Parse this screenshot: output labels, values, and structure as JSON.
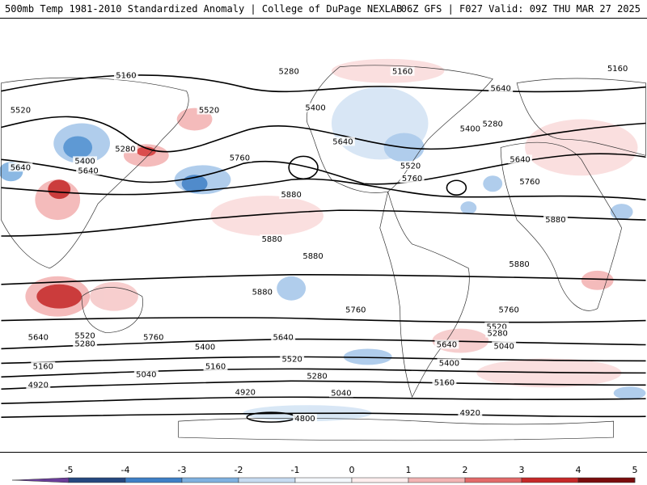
{
  "header": {
    "left": "500mb Temp 1981-2010 Standardized Anomaly | College of DuPage NEXLAB",
    "right": "06Z GFS | F027 Valid: 09Z THU MAR 27 2025"
  },
  "map": {
    "background": "#ffffff",
    "contour_labels": [
      "5160",
      "5280",
      "5160",
      "5160",
      "5520",
      "5400",
      "5520",
      "5400",
      "5280",
      "5640",
      "5640",
      "5640",
      "5760",
      "5640",
      "5400",
      "5280",
      "5520",
      "5760",
      "5640",
      "5760",
      "5880",
      "5880",
      "5880",
      "5880",
      "5880",
      "5880",
      "5760",
      "5760",
      "5760",
      "5640",
      "5640",
      "5520",
      "5280",
      "5040",
      "5640",
      "5520",
      "5280",
      "5400",
      "5160",
      "5040",
      "5160",
      "5280",
      "5400",
      "5520",
      "5160",
      "4920",
      "4920",
      "5040",
      "4800",
      "4920"
    ]
  },
  "colorbar": {
    "ticks": [
      "-5",
      "-4",
      "-3",
      "-2",
      "-1",
      "0",
      "1",
      "2",
      "3",
      "4",
      "5"
    ],
    "colors": [
      "#6a3d9a",
      "#24477f",
      "#3e7fc6",
      "#7fb1e0",
      "#c7dbf1",
      "#f4f8fc",
      "#fdeeee",
      "#f3b4b4",
      "#e36a6a",
      "#c62828",
      "#7a0c0c",
      "#f4b400"
    ]
  }
}
